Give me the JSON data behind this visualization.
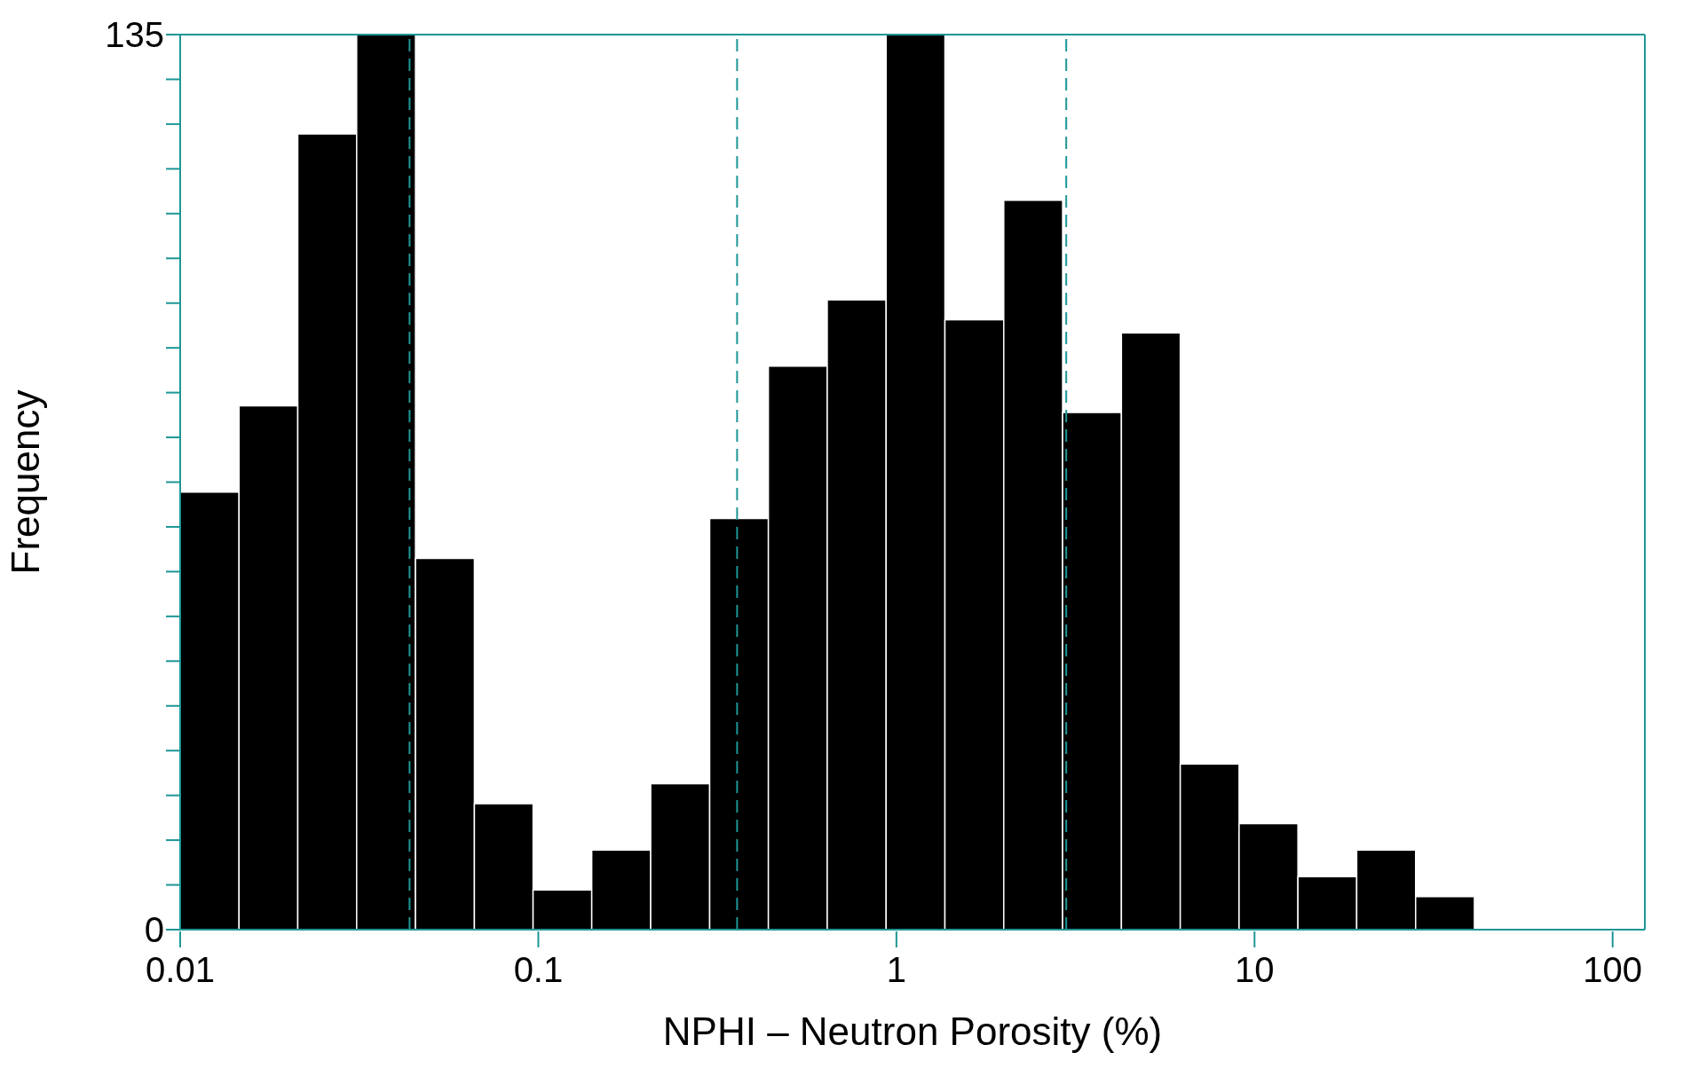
{
  "chart_data": {
    "type": "histogram",
    "xlabel": "NPHI – Neutron Porosity (%)",
    "ylabel": "Frequency",
    "log": "x",
    "color": "#000000",
    "bins": [
      0.01,
      0.0146,
      0.0213,
      0.0311,
      0.0454,
      0.0663,
      0.0967,
      0.141,
      0.206,
      0.301,
      0.439,
      0.641,
      0.936,
      1.366,
      1.994,
      2.911,
      4.249,
      6.203,
      9.055,
      13.22,
      19.29,
      28.17,
      41.11
    ],
    "values": [
      66,
      79,
      120,
      135,
      56,
      19,
      6,
      12,
      22,
      62,
      85,
      95,
      135,
      92,
      110,
      78,
      90,
      25,
      16,
      8,
      12,
      5
    ],
    "xlim": [
      0.01,
      123
    ],
    "xticks": [
      0.01,
      0.1,
      1,
      10,
      100
    ],
    "ylim": [
      0,
      135
    ],
    "yticks": [
      0,
      {
        "value": 6.75,
        "label": null
      },
      {
        "value": 13.5,
        "label": null
      },
      {
        "value": 20.25,
        "label": null
      },
      {
        "value": 27,
        "label": null
      },
      {
        "value": 33.75,
        "label": null
      },
      {
        "value": 40.5,
        "label": null
      },
      {
        "value": 47.25,
        "label": null
      },
      {
        "value": 54,
        "label": null
      },
      {
        "value": 60.75,
        "label": null
      },
      {
        "value": 67.5,
        "label": null
      },
      {
        "value": 74.25,
        "label": null
      },
      {
        "value": 81,
        "label": null
      },
      {
        "value": 87.75,
        "label": null
      },
      {
        "value": 94.5,
        "label": null
      },
      {
        "value": 101.25,
        "label": null
      },
      {
        "value": 108,
        "label": null
      },
      {
        "value": 114.75,
        "label": null
      },
      {
        "value": 121.5,
        "label": null
      },
      {
        "value": 128.25,
        "label": null
      },
      135
    ],
    "ref_lines": [
      {
        "axis": "x",
        "value": 0.0437,
        "color": "#1e9696",
        "line_style": "dashed"
      },
      {
        "axis": "x",
        "value": 0.359,
        "color": "#1e9696",
        "line_style": "dashed"
      },
      {
        "axis": "x",
        "value": 2.98,
        "color": "#1e9696",
        "line_style": "dashed"
      }
    ]
  }
}
